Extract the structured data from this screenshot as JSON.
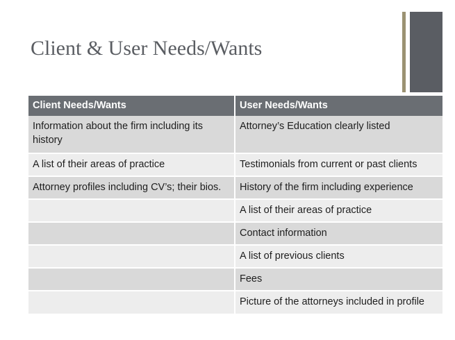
{
  "slide": {
    "title": "Client & User Needs/Wants",
    "accent_colors": {
      "thin_bar": "#9b9273",
      "thick_bar": "#5a5d63",
      "header": "#6a6e73"
    }
  },
  "table": {
    "headers": [
      "Client Needs/Wants",
      "User Needs/Wants"
    ],
    "rows": [
      [
        "Information about the firm including its history",
        "Attorney’s Education clearly listed"
      ],
      [
        "A list of their areas of practice",
        "Testimonials from current or past clients"
      ],
      [
        "Attorney profiles including CV’s; their bios.",
        "History of the firm including experience"
      ],
      [
        "",
        "A list of their areas of practice"
      ],
      [
        "",
        "Contact information"
      ],
      [
        "",
        "A list of previous clients"
      ],
      [
        "",
        "Fees"
      ],
      [
        "",
        "Picture of the attorneys included in profile"
      ]
    ]
  }
}
